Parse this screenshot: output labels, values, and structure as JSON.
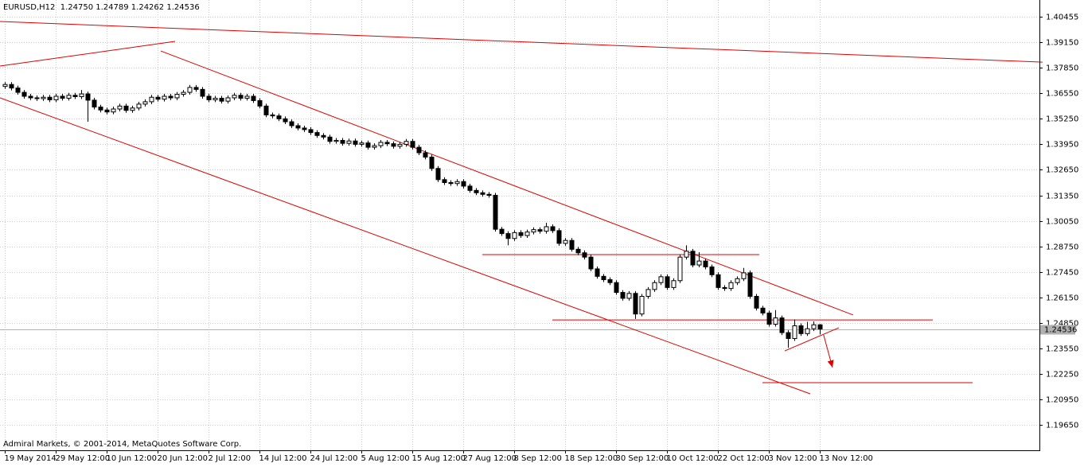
{
  "chart_data": {
    "type": "candlestick",
    "header": "EURUSD,H12  1.24750 1.24789 1.24262 1.24536",
    "footer": "Admiral Markets, © 2001-2014, MetaQuotes Software Corp.",
    "categories": [
      "19 May 2014",
      null,
      null,
      null,
      null,
      null,
      null,
      null,
      "29 May 12:00",
      null,
      null,
      null,
      null,
      null,
      null,
      null,
      "10 Jun 12:00",
      null,
      null,
      null,
      null,
      null,
      null,
      null,
      "20 Jun 12:00",
      null,
      null,
      null,
      null,
      null,
      null,
      null,
      "2 Jul 12:00",
      null,
      null,
      null,
      null,
      null,
      null,
      null,
      "14 Jul 12:00",
      null,
      null,
      null,
      null,
      null,
      null,
      null,
      "24 Jul 12:00",
      null,
      null,
      null,
      null,
      null,
      null,
      null,
      "5 Aug 12:00",
      null,
      null,
      null,
      null,
      null,
      null,
      null,
      "15 Aug 12:00",
      null,
      null,
      null,
      null,
      null,
      null,
      null,
      "27 Aug 12:00",
      null,
      null,
      null,
      null,
      null,
      null,
      null,
      "8 Sep 12:00",
      null,
      null,
      null,
      null,
      null,
      null,
      null,
      "18 Sep 12:00",
      null,
      null,
      null,
      null,
      null,
      null,
      null,
      "30 Sep 12:00",
      null,
      null,
      null,
      null,
      null,
      null,
      null,
      "10 Oct 12:00",
      null,
      null,
      null,
      null,
      null,
      null,
      null,
      "22 Oct 12:00",
      null,
      null,
      null,
      null,
      null,
      null,
      null,
      "3 Nov 12:00",
      null,
      null,
      null,
      null,
      null,
      null,
      null,
      "13 Nov 12:00"
    ],
    "open": [
      1.369,
      1.37,
      1.3682,
      1.366,
      1.364,
      1.3632,
      1.3628,
      1.3635,
      1.3622,
      1.364,
      1.363,
      1.3645,
      1.3638,
      1.3652,
      1.362,
      1.3585,
      1.357,
      1.356,
      1.3575,
      1.359,
      1.3568,
      1.358,
      1.36,
      1.3612,
      1.3635,
      1.3625,
      1.364,
      1.3632,
      1.365,
      1.366,
      1.3685,
      1.3675,
      1.364,
      1.3622,
      1.363,
      1.3615,
      1.3632,
      1.3645,
      1.363,
      1.364,
      1.3618,
      1.359,
      1.3545,
      1.354,
      1.3525,
      1.351,
      1.349,
      1.3478,
      1.347,
      1.3455,
      1.344,
      1.3432,
      1.341,
      1.3415,
      1.34,
      1.3412,
      1.3395,
      1.3402,
      1.338,
      1.3388,
      1.3405,
      1.3398,
      1.3385,
      1.3395,
      1.341,
      1.338,
      1.3352,
      1.333,
      1.3272,
      1.3215,
      1.32,
      1.3195,
      1.3205,
      1.3182,
      1.316,
      1.3148,
      1.314,
      1.3135,
      1.2962,
      1.294,
      1.2915,
      1.2945,
      1.293,
      1.2948,
      1.296,
      1.2952,
      1.2975,
      1.2955,
      1.289,
      1.2905,
      1.286,
      1.2842,
      1.282,
      1.276,
      1.2722,
      1.2705,
      1.269,
      1.264,
      1.261,
      1.2635,
      1.253,
      1.262,
      1.2655,
      1.269,
      1.272,
      1.2665,
      1.27,
      1.282,
      1.285,
      1.278,
      1.28,
      1.277,
      1.273,
      1.2665,
      1.266,
      1.269,
      1.271,
      1.274,
      1.262,
      1.256,
      1.2535,
      1.2478,
      1.251,
      1.2435,
      1.2405,
      1.247,
      1.243,
      1.2455,
      1.2475
    ],
    "high": [
      1.3712,
      1.3712,
      1.3694,
      1.3672,
      1.3652,
      1.3644,
      1.3647,
      1.3647,
      1.3652,
      1.3652,
      1.3657,
      1.3657,
      1.3672,
      1.3664,
      1.3632,
      1.3597,
      1.3582,
      1.3587,
      1.3602,
      1.3602,
      1.3592,
      1.3612,
      1.3624,
      1.3647,
      1.3647,
      1.3652,
      1.3652,
      1.3662,
      1.3672,
      1.3697,
      1.3697,
      1.3687,
      1.3652,
      1.3642,
      1.3642,
      1.3644,
      1.3657,
      1.3657,
      1.3652,
      1.3652,
      1.363,
      1.3602,
      1.3557,
      1.3552,
      1.3537,
      1.3522,
      1.3502,
      1.349,
      1.3482,
      1.3467,
      1.3452,
      1.3444,
      1.3427,
      1.3427,
      1.3424,
      1.3424,
      1.3414,
      1.3414,
      1.34,
      1.3417,
      1.3417,
      1.341,
      1.3407,
      1.3422,
      1.3422,
      1.3392,
      1.3364,
      1.3342,
      1.3284,
      1.3227,
      1.3212,
      1.3217,
      1.3217,
      1.3194,
      1.3172,
      1.316,
      1.3152,
      1.3147,
      1.2974,
      1.2952,
      1.2957,
      1.2957,
      1.296,
      1.2972,
      1.2972,
      1.2995,
      1.2987,
      1.2967,
      1.2917,
      1.2917,
      1.2872,
      1.2854,
      1.2832,
      1.2772,
      1.2734,
      1.2717,
      1.2702,
      1.2652,
      1.2647,
      1.2647,
      1.2632,
      1.2667,
      1.2702,
      1.2732,
      1.2732,
      1.2712,
      1.2832,
      1.288,
      1.2862,
      1.2845,
      1.2812,
      1.2782,
      1.2742,
      1.2677,
      1.2702,
      1.2722,
      1.2765,
      1.2752,
      1.2632,
      1.2572,
      1.2547,
      1.255,
      1.2522,
      1.2447,
      1.2502,
      1.2482,
      1.249,
      1.2492,
      1.24789
    ],
    "low": [
      1.3678,
      1.367,
      1.3648,
      1.3628,
      1.362,
      1.3616,
      1.3616,
      1.361,
      1.361,
      1.3618,
      1.3618,
      1.3626,
      1.3626,
      1.351,
      1.3573,
      1.3558,
      1.3548,
      1.3548,
      1.3563,
      1.3556,
      1.3556,
      1.3568,
      1.3588,
      1.36,
      1.3613,
      1.3613,
      1.362,
      1.362,
      1.3638,
      1.3648,
      1.3663,
      1.3628,
      1.361,
      1.361,
      1.3603,
      1.3603,
      1.362,
      1.3618,
      1.3618,
      1.3606,
      1.3578,
      1.3533,
      1.3528,
      1.3513,
      1.3498,
      1.3478,
      1.3466,
      1.3458,
      1.3443,
      1.3428,
      1.342,
      1.3398,
      1.3398,
      1.3388,
      1.3388,
      1.3383,
      1.3383,
      1.3368,
      1.3368,
      1.3376,
      1.3386,
      1.3373,
      1.3373,
      1.3383,
      1.3368,
      1.334,
      1.3318,
      1.326,
      1.3203,
      1.3188,
      1.3183,
      1.3183,
      1.317,
      1.3148,
      1.3136,
      1.3128,
      1.3123,
      1.295,
      1.2928,
      1.288,
      1.2903,
      1.2918,
      1.2918,
      1.2936,
      1.294,
      1.294,
      1.2943,
      1.2878,
      1.2878,
      1.2848,
      1.283,
      1.2808,
      1.2748,
      1.271,
      1.2693,
      1.2678,
      1.2628,
      1.2598,
      1.2598,
      1.2505,
      1.2518,
      1.2608,
      1.2643,
      1.2678,
      1.2653,
      1.2653,
      1.2688,
      1.2808,
      1.2768,
      1.2768,
      1.2758,
      1.2718,
      1.2653,
      1.2648,
      1.2648,
      1.2678,
      1.2698,
      1.2608,
      1.2548,
      1.2523,
      1.2466,
      1.2466,
      1.2423,
      1.2358,
      1.2393,
      1.2418,
      1.2418,
      1.2443,
      1.24262
    ],
    "close": [
      1.37,
      1.3682,
      1.366,
      1.364,
      1.3632,
      1.3628,
      1.3635,
      1.3622,
      1.364,
      1.363,
      1.3645,
      1.3638,
      1.3652,
      1.362,
      1.3585,
      1.357,
      1.356,
      1.3575,
      1.359,
      1.3568,
      1.358,
      1.36,
      1.3612,
      1.3635,
      1.3625,
      1.364,
      1.3632,
      1.365,
      1.366,
      1.3685,
      1.3675,
      1.364,
      1.3622,
      1.363,
      1.3615,
      1.3632,
      1.3645,
      1.363,
      1.364,
      1.3618,
      1.359,
      1.3545,
      1.354,
      1.3525,
      1.351,
      1.349,
      1.3478,
      1.347,
      1.3455,
      1.344,
      1.3432,
      1.341,
      1.3415,
      1.34,
      1.3412,
      1.3395,
      1.3402,
      1.338,
      1.3388,
      1.3405,
      1.3398,
      1.3385,
      1.3395,
      1.341,
      1.338,
      1.3352,
      1.333,
      1.3272,
      1.3215,
      1.32,
      1.3195,
      1.3205,
      1.3182,
      1.316,
      1.3148,
      1.314,
      1.3135,
      1.2962,
      1.294,
      1.2915,
      1.2945,
      1.293,
      1.2948,
      1.296,
      1.2952,
      1.2975,
      1.2955,
      1.289,
      1.2905,
      1.286,
      1.2842,
      1.282,
      1.276,
      1.2722,
      1.2705,
      1.269,
      1.264,
      1.261,
      1.2635,
      1.253,
      1.262,
      1.2655,
      1.269,
      1.272,
      1.2665,
      1.27,
      1.282,
      1.285,
      1.278,
      1.28,
      1.277,
      1.273,
      1.2665,
      1.266,
      1.269,
      1.271,
      1.274,
      1.262,
      1.256,
      1.2535,
      1.2478,
      1.251,
      1.2435,
      1.2405,
      1.247,
      1.243,
      1.2455,
      1.2475,
      1.24536
    ],
    "bid": 1.24536,
    "xlim": [
      -0.75,
      162.5
    ],
    "ylim": [
      1.18352,
      1.41307
    ],
    "yticks": [
      {
        "value": 1.40455,
        "label": "1.40455"
      },
      {
        "value": 1.3915,
        "label": "1.39150"
      },
      {
        "value": 1.3785,
        "label": "1.37850"
      },
      {
        "value": 1.3655,
        "label": "1.36550"
      },
      {
        "value": 1.3525,
        "label": "1.35250"
      },
      {
        "value": 1.3395,
        "label": "1.33950"
      },
      {
        "value": 1.3265,
        "label": "1.32650"
      },
      {
        "value": 1.3135,
        "label": "1.31350"
      },
      {
        "value": 1.3005,
        "label": "1.30050"
      },
      {
        "value": 1.2875,
        "label": "1.28750"
      },
      {
        "value": 1.2745,
        "label": "1.27450"
      },
      {
        "value": 1.2615,
        "label": "1.26150"
      },
      {
        "value": 1.2485,
        "label": "1.24850"
      },
      {
        "value": 1.2355,
        "label": "1.23550"
      },
      {
        "value": 1.2225,
        "label": "1.22250"
      },
      {
        "value": 1.2095,
        "label": "1.20950"
      },
      {
        "value": 1.1965,
        "label": "1.19650"
      }
    ],
    "grid": true,
    "line_color": "#e00000",
    "trendlines": [
      {
        "x": [
          -0.75,
          163
        ],
        "y": [
          1.4021,
          1.3814
        ]
      },
      {
        "x": [
          -0.75,
          26.75
        ],
        "y": [
          1.3794,
          1.392
        ]
      },
      {
        "x": [
          24.5,
          133.25
        ],
        "y": [
          1.3871,
          1.2525
        ]
      },
      {
        "x": [
          -0.75,
          126.5
        ],
        "y": [
          1.3632,
          1.2123
        ]
      },
      {
        "x": [
          75,
          118.5
        ],
        "y": [
          1.2833,
          1.2833
        ]
      },
      {
        "x": [
          86,
          145.75
        ],
        "y": [
          1.25,
          1.25
        ]
      },
      {
        "x": [
          122.5,
          131
        ],
        "y": [
          1.2342,
          1.246
        ]
      },
      {
        "x": [
          119,
          152
        ],
        "y": [
          1.218,
          1.218
        ]
      }
    ],
    "arrow": {
      "x": [
        128.6,
        130
      ],
      "y": [
        1.2424,
        1.2257
      ]
    }
  }
}
